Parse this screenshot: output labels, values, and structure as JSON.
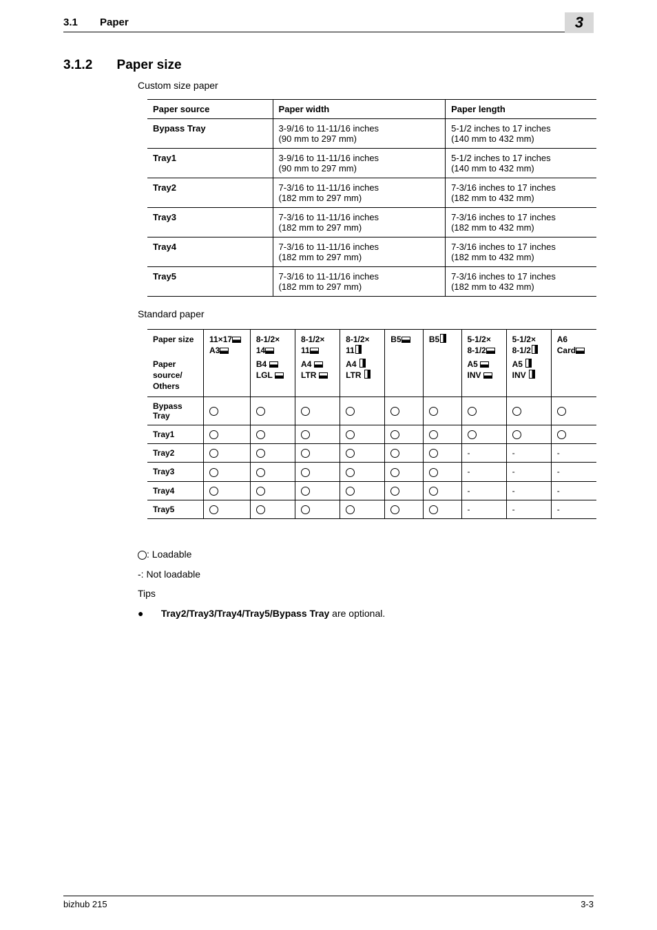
{
  "header": {
    "section_num": "3.1",
    "section_title": "Paper",
    "chapter_num": "3"
  },
  "heading": {
    "number": "3.1.2",
    "title": "Paper size"
  },
  "subtitle1": "Custom size paper",
  "table1": {
    "headers": [
      "Paper source",
      "Paper width",
      "Paper length"
    ],
    "rows": [
      {
        "src": "Bypass Tray",
        "w1": "3-9/16 to 11-11/16 inches",
        "w2": "(90 mm to 297 mm)",
        "l1": "5-1/2 inches to 17 inches",
        "l2": "(140 mm to 432 mm)"
      },
      {
        "src": "Tray1",
        "w1": "3-9/16 to 11-11/16 inches",
        "w2": "(90 mm to 297 mm)",
        "l1": "5-1/2 inches to 17 inches",
        "l2": "(140 mm to 432 mm)"
      },
      {
        "src": "Tray2",
        "w1": "7-3/16 to 11-11/16 inches",
        "w2": "(182 mm to 297 mm)",
        "l1": "7-3/16 inches to 17 inches",
        "l2": "(182 mm to 432 mm)"
      },
      {
        "src": "Tray3",
        "w1": "7-3/16 to 11-11/16 inches",
        "w2": "(182 mm to 297 mm)",
        "l1": "7-3/16 inches to 17 inches",
        "l2": "(182 mm to 432 mm)"
      },
      {
        "src": "Tray4",
        "w1": "7-3/16 to 11-11/16 inches",
        "w2": "(182 mm to 297 mm)",
        "l1": "7-3/16 inches to 17 inches",
        "l2": "(182 mm to 432 mm)"
      },
      {
        "src": "Tray5",
        "w1": "7-3/16 to 11-11/16 inches",
        "w2": "(182 mm to 297 mm)",
        "l1": "7-3/16 inches to 17 inches",
        "l2": "(182 mm to 432 mm)"
      }
    ]
  },
  "subtitle2": "Standard paper",
  "table2": {
    "top_header_label1": "Paper size",
    "top_header_label2": "Paper source/ Others",
    "cols": [
      {
        "top": [
          {
            "t": "11×17",
            "o": "L"
          },
          {
            "t": "A3",
            "o": "L"
          }
        ],
        "bot": []
      },
      {
        "top": [
          {
            "t": "8-1/2× 14",
            "o": "L"
          }
        ],
        "bot": [
          {
            "t": "B4",
            "o": "L"
          },
          {
            "t": "LGL",
            "o": "L"
          }
        ]
      },
      {
        "top": [
          {
            "t": "8-1/2× 11",
            "o": "L"
          }
        ],
        "bot": [
          {
            "t": "A4",
            "o": "L"
          },
          {
            "t": "LTR",
            "o": "L"
          }
        ]
      },
      {
        "top": [
          {
            "t": "8-1/2× 11",
            "o": "P"
          }
        ],
        "bot": [
          {
            "t": "A4",
            "o": "P"
          },
          {
            "t": "LTR",
            "o": "P"
          }
        ]
      },
      {
        "top": [
          {
            "t": "B5",
            "o": "L"
          }
        ],
        "bot": []
      },
      {
        "top": [
          {
            "t": "B5",
            "o": "P"
          }
        ],
        "bot": []
      },
      {
        "top": [
          {
            "t": "5-1/2× 8-1/2",
            "o": "L"
          }
        ],
        "bot": [
          {
            "t": "A5",
            "o": "L"
          },
          {
            "t": "INV",
            "o": "L"
          }
        ]
      },
      {
        "top": [
          {
            "t": "5-1/2× 8-1/2",
            "o": "P"
          }
        ],
        "bot": [
          {
            "t": "A5",
            "o": "P"
          },
          {
            "t": "INV",
            "o": "P"
          }
        ]
      },
      {
        "top": [
          {
            "t": "A6 Card",
            "o": "L"
          }
        ],
        "bot": []
      }
    ],
    "rows": [
      {
        "label": "Bypass Tray",
        "cells": [
          "o",
          "o",
          "o",
          "o",
          "o",
          "o",
          "o",
          "o",
          "o"
        ]
      },
      {
        "label": "Tray1",
        "cells": [
          "o",
          "o",
          "o",
          "o",
          "o",
          "o",
          "o",
          "o",
          "o"
        ]
      },
      {
        "label": "Tray2",
        "cells": [
          "o",
          "o",
          "o",
          "o",
          "o",
          "o",
          "-",
          "-",
          "-"
        ]
      },
      {
        "label": "Tray3",
        "cells": [
          "o",
          "o",
          "o",
          "o",
          "o",
          "o",
          "-",
          "-",
          "-"
        ]
      },
      {
        "label": "Tray4",
        "cells": [
          "o",
          "o",
          "o",
          "o",
          "o",
          "o",
          "-",
          "-",
          "-"
        ]
      },
      {
        "label": "Tray5",
        "cells": [
          "o",
          "o",
          "o",
          "o",
          "o",
          "o",
          "-",
          "-",
          "-"
        ]
      }
    ]
  },
  "legend": {
    "loadable": ": Loadable",
    "not_loadable": "-: Not loadable",
    "tips": "Tips",
    "tip_bold": "Tray2/Tray3/Tray4/Tray5/Bypass Tray",
    "tip_rest": " are optional."
  },
  "footer": {
    "left": "bizhub 215",
    "right": "3-3"
  }
}
